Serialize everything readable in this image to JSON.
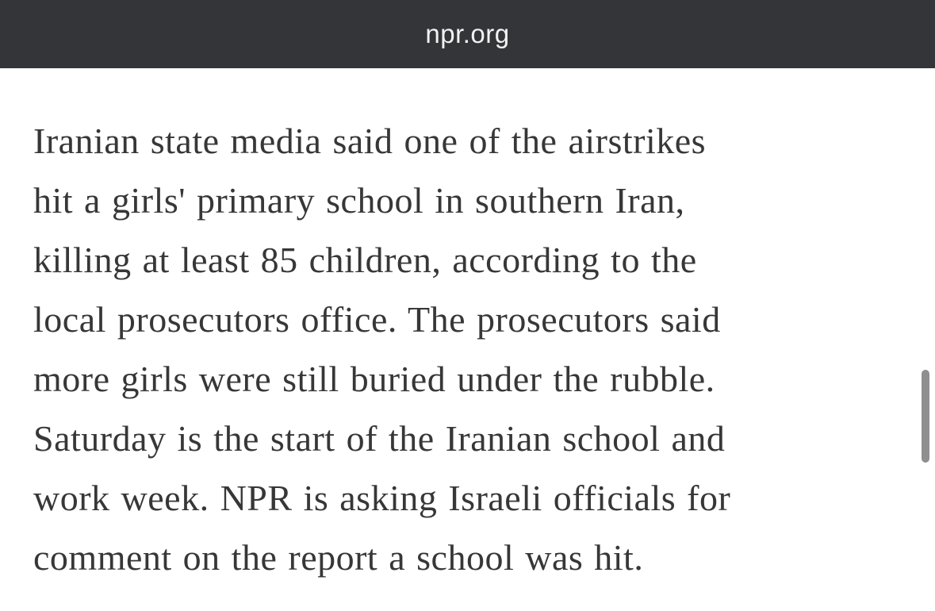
{
  "theme": {
    "header_bg": "#333538",
    "header_text": "#f2f2f2",
    "page_bg": "#ffffff",
    "article_text": "#373737",
    "scrollbar_thumb": "#8f8f8f"
  },
  "browser": {
    "url_bar": "npr.org"
  },
  "article": {
    "full_text": "Iranian state media said one of the airstrikes hit a girls' primary school in southern Iran, killing at least 85 children, according to the local prosecutors office. The prosecutors said more girls were still buried under the rubble. Saturday is the start of the Iranian school and work week. NPR is asking Israeli officials for comment on the report a school was hit.",
    "lines": [
      "Iranian state media said one of the airstrikes",
      "hit a girls' primary school in southern Iran,",
      "killing at least 85 children, according to the",
      "local prosecutors office. The prosecutors said",
      "more girls were still buried under the rubble.",
      "Saturday is the start of the Iranian school and",
      "work week. NPR is asking Israeli officials for",
      "comment on the report a school was hit."
    ]
  }
}
